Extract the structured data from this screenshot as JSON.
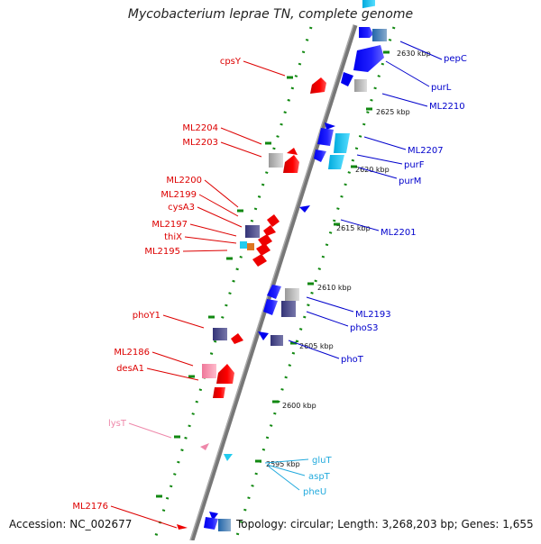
{
  "title": "Mycobacterium leprae TN, complete genome",
  "footer": {
    "accession": "Accession: NC_002677",
    "info": "Topology: circular; Length: 3,268,203 bp; Genes: 1,655"
  },
  "colors": {
    "forward": "#0000ee",
    "reverse": "#ee0000",
    "rna": "#22ccee",
    "pseudo_rev": "#ee88aa",
    "backbone": "#777777",
    "tick": "#118811"
  },
  "tick_labels": [
    "2630 kbp",
    "2625 kbp",
    "2620 kbp",
    "2615 kbp",
    "2610 kbp",
    "2605 kbp",
    "2600 kbp",
    "2595 kbp"
  ],
  "genes_right": [
    {
      "label": "pepC",
      "color": "#0000cc"
    },
    {
      "label": "purL",
      "color": "#0000cc"
    },
    {
      "label": "ML2210",
      "color": "#0000cc"
    },
    {
      "label": "ML2207",
      "color": "#0000cc"
    },
    {
      "label": "purF",
      "color": "#0000cc"
    },
    {
      "label": "purM",
      "color": "#0000cc"
    },
    {
      "label": "ML2201",
      "color": "#0000cc"
    },
    {
      "label": "ML2193",
      "color": "#0000cc"
    },
    {
      "label": "phoS3",
      "color": "#0000cc"
    },
    {
      "label": "phoT",
      "color": "#0000cc"
    },
    {
      "label": "gluT",
      "color": "#22aadd"
    },
    {
      "label": "aspT",
      "color": "#22aadd"
    },
    {
      "label": "pheU",
      "color": "#22aadd"
    }
  ],
  "genes_left": [
    {
      "label": "cpsY",
      "color": "#dd0000"
    },
    {
      "label": "ML2204",
      "color": "#dd0000"
    },
    {
      "label": "ML2203",
      "color": "#dd0000"
    },
    {
      "label": "ML2200",
      "color": "#dd0000"
    },
    {
      "label": "ML2199",
      "color": "#dd0000"
    },
    {
      "label": "cysA3",
      "color": "#dd0000"
    },
    {
      "label": "ML2197",
      "color": "#dd0000"
    },
    {
      "label": "thiX",
      "color": "#dd0000"
    },
    {
      "label": "ML2195",
      "color": "#dd0000"
    },
    {
      "label": "phoY1",
      "color": "#dd0000"
    },
    {
      "label": "ML2186",
      "color": "#dd0000"
    },
    {
      "label": "desA1",
      "color": "#dd0000"
    },
    {
      "label": "lysT",
      "color": "#ee88aa"
    },
    {
      "label": "ML2176",
      "color": "#dd0000"
    }
  ]
}
